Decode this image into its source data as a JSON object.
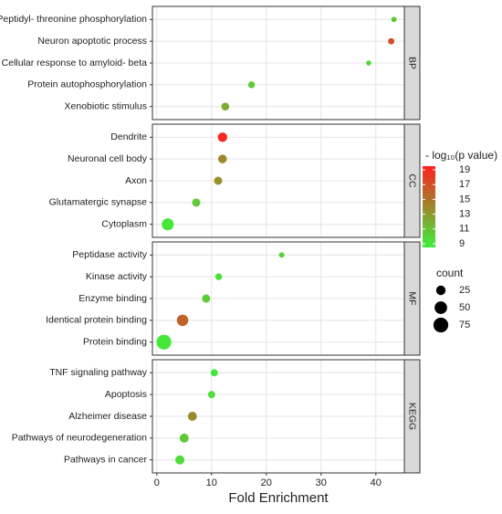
{
  "chart_data": {
    "type": "dot",
    "x_label": "Fold Enrichment",
    "xlim": [
      -0.8,
      45.2
    ],
    "xticks": [
      0,
      10,
      20,
      30,
      40
    ],
    "grid": true,
    "color_title": "- log₁₀(p value)",
    "color_low": "#3cf03c",
    "color_high": "#ff2020",
    "colorlim": [
      8.5,
      19.5
    ],
    "color_ticks": [
      9,
      11,
      13,
      15,
      17,
      19
    ],
    "size_title": "count",
    "size_ticks": [
      25,
      50,
      75
    ],
    "panels": [
      {
        "name": "BP",
        "categories": [
          "Peptidyl- threonine phosphorylation",
          "Neuron apoptotic process",
          "Cellular response to amyloid- beta",
          "Protein autophosphorylation",
          "Xenobiotic stimulus"
        ],
        "values": [
          43.3,
          42.8,
          38.7,
          17.3,
          12.5
        ],
        "color_values": [
          10.5,
          17,
          9.8,
          10.5,
          12
        ],
        "counts": [
          5,
          8,
          4,
          10,
          15
        ]
      },
      {
        "name": "CC",
        "categories": [
          "Dendrite",
          "Neuronal cell body",
          "Axon",
          "Glutamatergic synapse",
          "Cytoplasm"
        ],
        "values": [
          12,
          12,
          11.2,
          7.2,
          2
        ],
        "color_values": [
          19,
          14,
          13.5,
          10.5,
          9
        ],
        "counts": [
          25,
          20,
          17,
          17,
          45
        ]
      },
      {
        "name": "MF",
        "categories": [
          "Peptidase activity",
          "Kinase activity",
          "Enzyme binding",
          "Identical protein binding",
          "Protein binding"
        ],
        "values": [
          22.8,
          11.3,
          9,
          4.7,
          1.3
        ],
        "color_values": [
          10,
          9.5,
          10.5,
          16,
          9
        ],
        "counts": [
          5,
          10,
          17,
          40,
          75
        ]
      },
      {
        "name": "KEGG",
        "categories": [
          "TNF signaling pathway",
          "Apoptosis",
          "Alzheimer disease",
          "Pathways of neurodegeneration",
          "Pathways in cancer"
        ],
        "values": [
          10.5,
          10,
          6.5,
          5,
          4.2
        ],
        "color_values": [
          9,
          9.5,
          14,
          10.5,
          9.5
        ],
        "counts": [
          12,
          12,
          22,
          22,
          22
        ]
      }
    ]
  }
}
